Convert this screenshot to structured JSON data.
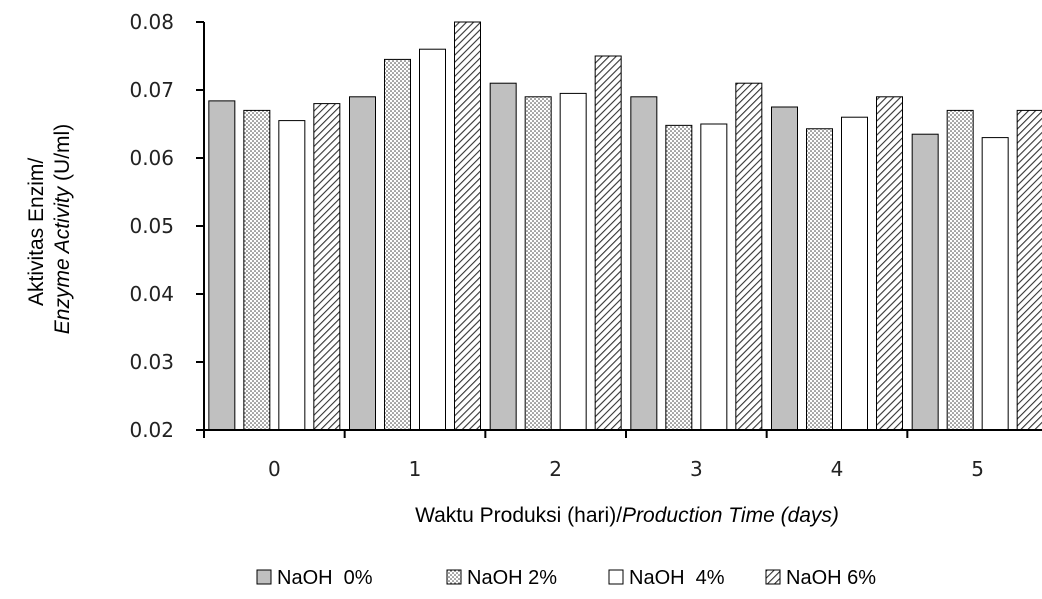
{
  "chart_data": {
    "type": "bar",
    "categories": [
      "0",
      "1",
      "2",
      "3",
      "4",
      "5"
    ],
    "series": [
      {
        "name": "NaOH  0%",
        "fill": "solid-gray",
        "color": "#c0c0c0",
        "values": [
          0.0684,
          0.069,
          0.071,
          0.069,
          0.0675,
          0.0635
        ]
      },
      {
        "name": "NaOH 2%",
        "fill": "dots",
        "color": "#000000",
        "values": [
          0.067,
          0.0745,
          0.069,
          0.0648,
          0.0643,
          0.067
        ]
      },
      {
        "name": "NaOH  4%",
        "fill": "white",
        "color": "#ffffff",
        "values": [
          0.0655,
          0.076,
          0.0695,
          0.065,
          0.066,
          0.063
        ]
      },
      {
        "name": "NaOH 6%",
        "fill": "diagonal-hatch",
        "color": "#000000",
        "values": [
          0.068,
          0.08,
          0.075,
          0.071,
          0.069,
          0.067
        ]
      }
    ],
    "ylim": [
      0.02,
      0.08
    ],
    "yticks": [
      "0.02",
      "0.03",
      "0.04",
      "0.05",
      "0.06",
      "0.07",
      "0.08"
    ],
    "ylabel_line1": "Aktivitas Enzim/",
    "ylabel_line2_italic": "Enzyme Activity",
    "ylabel_line2_unit": " (U/ml)",
    "xlabel_plain": "Waktu Produksi (hari)/",
    "xlabel_italic": "Production Time (days)",
    "grid": false,
    "legend_position": "bottom"
  }
}
